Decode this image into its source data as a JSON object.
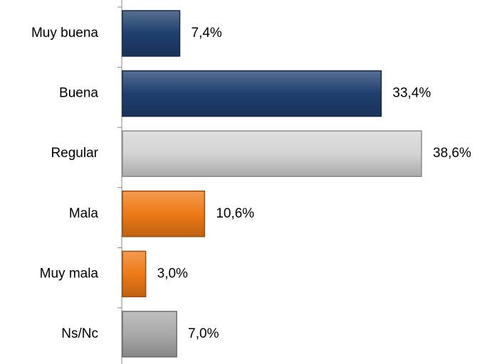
{
  "chart_data": {
    "type": "bar",
    "orientation": "horizontal",
    "categories": [
      "Muy buena",
      "Buena",
      "Regular",
      "Mala",
      "Muy mala",
      "Ns/Nc"
    ],
    "values": [
      7.4,
      33.4,
      38.6,
      10.6,
      3.0,
      7.0
    ],
    "value_labels": [
      "7,4%",
      "33,4%",
      "38,6%",
      "10,6%",
      "3,0%",
      "7,0%"
    ],
    "colors": [
      "#1f3f6e",
      "#1f3f6e",
      "#d4d4d4",
      "#ee7a16",
      "#ee7a16",
      "#a9a9a9"
    ]
  }
}
